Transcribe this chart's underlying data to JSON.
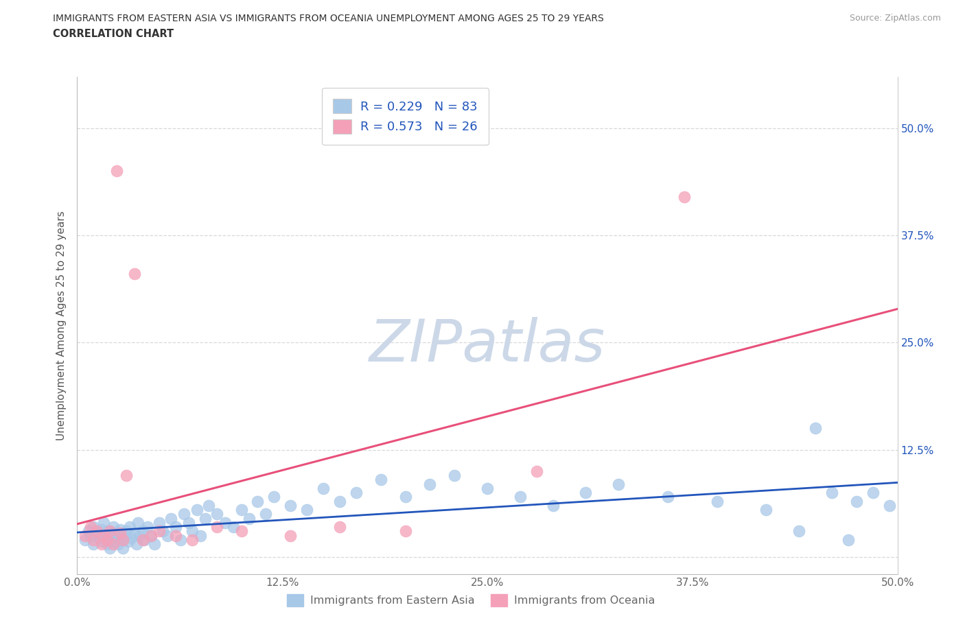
{
  "title_line1": "IMMIGRANTS FROM EASTERN ASIA VS IMMIGRANTS FROM OCEANIA UNEMPLOYMENT AMONG AGES 25 TO 29 YEARS",
  "title_line2": "CORRELATION CHART",
  "source_text": "Source: ZipAtlas.com",
  "xlabel": "Immigrants from Eastern Asia",
  "ylabel": "Unemployment Among Ages 25 to 29 years",
  "xlim": [
    0.0,
    0.5
  ],
  "ylim": [
    -0.02,
    0.56
  ],
  "xticks": [
    0.0,
    0.125,
    0.25,
    0.375,
    0.5
  ],
  "xticklabels": [
    "0.0%",
    "12.5%",
    "25.0%",
    "37.5%",
    "50.0%"
  ],
  "yticks": [
    0.0,
    0.125,
    0.25,
    0.375,
    0.5
  ],
  "yticklabels_left": [
    "",
    "",
    "",
    "",
    ""
  ],
  "yticklabels_right": [
    "",
    "12.5%",
    "25.0%",
    "37.5%",
    "50.0%"
  ],
  "R_eastern": 0.229,
  "N_eastern": 83,
  "R_oceania": 0.573,
  "N_oceania": 26,
  "blue_color": "#a8c8e8",
  "pink_color": "#f4a0b8",
  "blue_line_color": "#2255bb",
  "pink_line_color": "#e8507a",
  "title_color": "#333333",
  "axis_label_color": "#555555",
  "tick_color": "#666666",
  "legend_r_color": "#2255bb",
  "watermark_color": "#ccd8e8",
  "grid_color": "#d8d8d8",
  "eastern_asia_x": [
    0.005,
    0.007,
    0.008,
    0.01,
    0.01,
    0.012,
    0.013,
    0.015,
    0.015,
    0.016,
    0.018,
    0.018,
    0.019,
    0.02,
    0.02,
    0.021,
    0.022,
    0.023,
    0.024,
    0.025,
    0.025,
    0.026,
    0.027,
    0.028,
    0.029,
    0.03,
    0.031,
    0.032,
    0.033,
    0.035,
    0.036,
    0.037,
    0.038,
    0.04,
    0.041,
    0.043,
    0.045,
    0.047,
    0.05,
    0.052,
    0.055,
    0.057,
    0.06,
    0.063,
    0.065,
    0.068,
    0.07,
    0.073,
    0.075,
    0.078,
    0.08,
    0.085,
    0.09,
    0.095,
    0.1,
    0.105,
    0.11,
    0.115,
    0.12,
    0.13,
    0.14,
    0.15,
    0.16,
    0.17,
    0.185,
    0.2,
    0.215,
    0.23,
    0.25,
    0.27,
    0.29,
    0.31,
    0.33,
    0.36,
    0.39,
    0.42,
    0.45,
    0.46,
    0.475,
    0.485,
    0.495,
    0.47,
    0.44
  ],
  "eastern_asia_y": [
    0.02,
    0.03,
    0.025,
    0.035,
    0.015,
    0.028,
    0.022,
    0.032,
    0.018,
    0.04,
    0.025,
    0.015,
    0.03,
    0.02,
    0.01,
    0.025,
    0.035,
    0.018,
    0.028,
    0.022,
    0.015,
    0.032,
    0.02,
    0.01,
    0.025,
    0.03,
    0.018,
    0.035,
    0.022,
    0.028,
    0.015,
    0.04,
    0.025,
    0.03,
    0.02,
    0.035,
    0.025,
    0.015,
    0.04,
    0.03,
    0.025,
    0.045,
    0.035,
    0.02,
    0.05,
    0.04,
    0.03,
    0.055,
    0.025,
    0.045,
    0.06,
    0.05,
    0.04,
    0.035,
    0.055,
    0.045,
    0.065,
    0.05,
    0.07,
    0.06,
    0.055,
    0.08,
    0.065,
    0.075,
    0.09,
    0.07,
    0.085,
    0.095,
    0.08,
    0.07,
    0.06,
    0.075,
    0.085,
    0.07,
    0.065,
    0.055,
    0.15,
    0.075,
    0.065,
    0.075,
    0.06,
    0.02,
    0.03
  ],
  "oceania_x": [
    0.005,
    0.008,
    0.01,
    0.012,
    0.015,
    0.016,
    0.018,
    0.02,
    0.022,
    0.024,
    0.026,
    0.028,
    0.03,
    0.035,
    0.04,
    0.045,
    0.05,
    0.06,
    0.07,
    0.085,
    0.1,
    0.13,
    0.16,
    0.2,
    0.28,
    0.37
  ],
  "oceania_y": [
    0.025,
    0.035,
    0.02,
    0.03,
    0.015,
    0.025,
    0.02,
    0.03,
    0.015,
    0.45,
    0.028,
    0.02,
    0.095,
    0.33,
    0.02,
    0.025,
    0.03,
    0.025,
    0.02,
    0.035,
    0.03,
    0.025,
    0.035,
    0.03,
    0.1,
    0.42
  ]
}
